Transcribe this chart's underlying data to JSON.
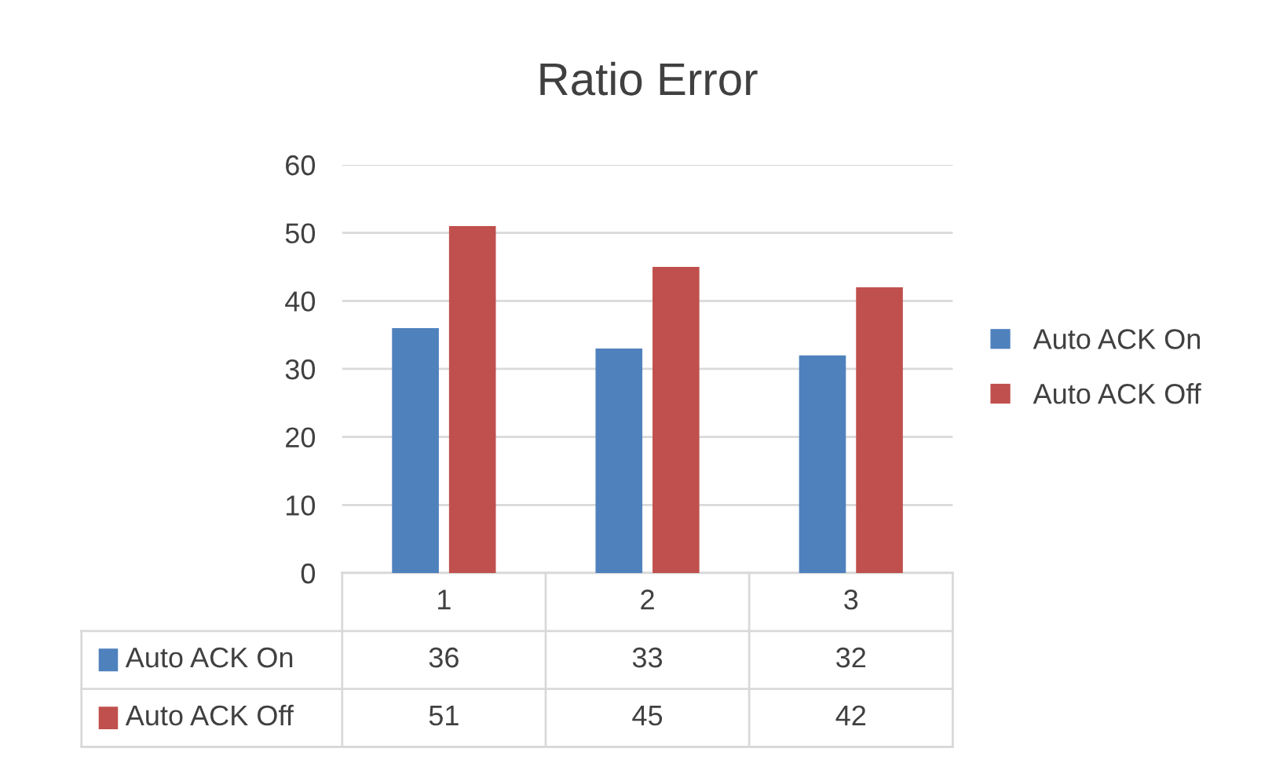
{
  "chart_data": {
    "type": "bar",
    "title": "Ratio Error",
    "categories": [
      "1",
      "2",
      "3"
    ],
    "series": [
      {
        "name": "Auto ACK On",
        "color": "#4f81bd",
        "values": [
          36,
          33,
          32
        ]
      },
      {
        "name": "Auto ACK Off",
        "color": "#c0504d",
        "values": [
          51,
          45,
          42
        ]
      }
    ],
    "ylim": [
      0,
      60
    ],
    "yticks": [
      0,
      10,
      20,
      30,
      40,
      50,
      60
    ],
    "grid": "y",
    "legend": "right",
    "data_labels": true
  }
}
